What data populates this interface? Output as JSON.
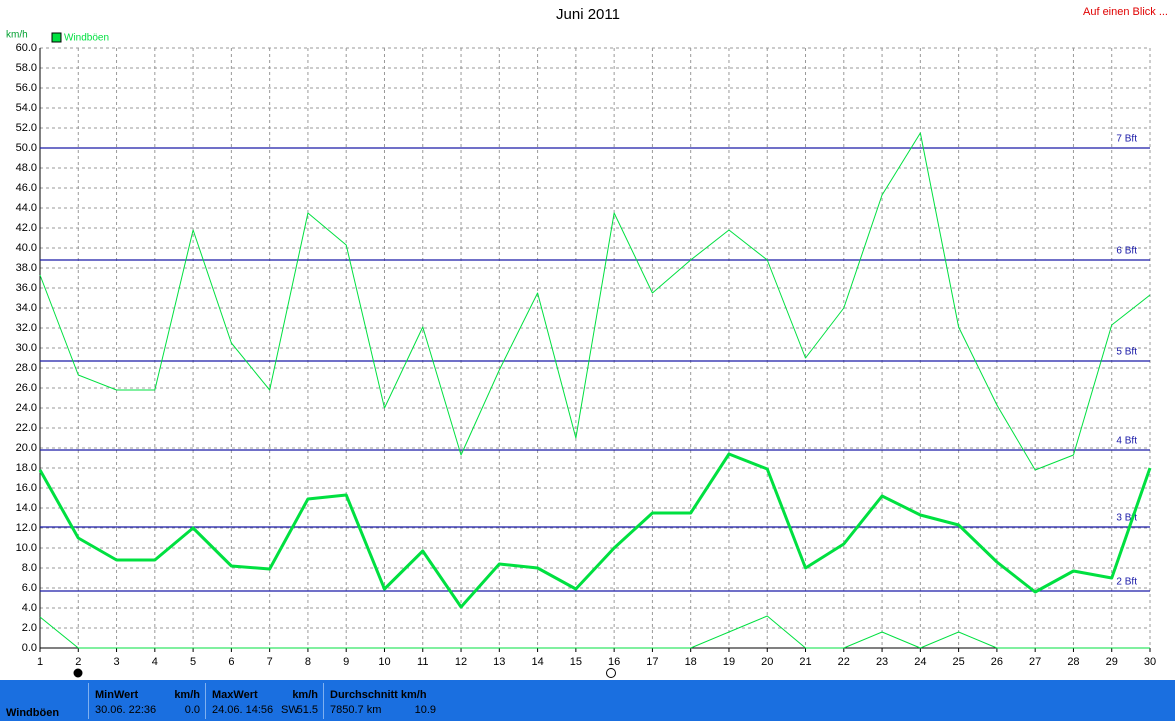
{
  "chart_data": {
    "type": "line",
    "title": "Juni 2011",
    "y_label": "km/h",
    "legend_label": "Windböen",
    "legend_color": "#00e040",
    "x": [
      1,
      2,
      3,
      4,
      5,
      6,
      7,
      8,
      9,
      10,
      11,
      12,
      13,
      14,
      15,
      16,
      17,
      18,
      19,
      20,
      21,
      22,
      23,
      24,
      25,
      26,
      27,
      28,
      29,
      30
    ],
    "xlim": [
      1,
      30
    ],
    "xticks": [
      1,
      2,
      3,
      4,
      5,
      6,
      7,
      8,
      9,
      10,
      11,
      12,
      13,
      14,
      15,
      16,
      17,
      18,
      19,
      20,
      21,
      22,
      23,
      24,
      25,
      26,
      27,
      28,
      29,
      30
    ],
    "ylim": [
      0,
      60
    ],
    "yticks": [
      {
        "value": 0,
        "label": "0.0"
      },
      {
        "value": 2,
        "label": "2.0"
      },
      {
        "value": 4,
        "label": "4.0"
      },
      {
        "value": 6,
        "label": "6.0"
      },
      {
        "value": 8,
        "label": "8.0"
      },
      {
        "value": 10,
        "label": "10.0"
      },
      {
        "value": 12,
        "label": "12.0"
      },
      {
        "value": 14,
        "label": "14.0"
      },
      {
        "value": 16,
        "label": "16.0"
      },
      {
        "value": 18,
        "label": "18.0"
      },
      {
        "value": 20,
        "label": "20.0"
      },
      {
        "value": 22,
        "label": "22.0"
      },
      {
        "value": 24,
        "label": "24.0"
      },
      {
        "value": 26,
        "label": "26.0"
      },
      {
        "value": 28,
        "label": "28.0"
      },
      {
        "value": 30,
        "label": "30.0"
      },
      {
        "value": 32,
        "label": "32.0"
      },
      {
        "value": 34,
        "label": "34.0"
      },
      {
        "value": 36,
        "label": "36.0"
      },
      {
        "value": 38,
        "label": "38.0"
      },
      {
        "value": 40,
        "label": "40.0"
      },
      {
        "value": 42,
        "label": "42.0"
      },
      {
        "value": 44,
        "label": "44.0"
      },
      {
        "value": 46,
        "label": "46.0"
      },
      {
        "value": 48,
        "label": "48.0"
      },
      {
        "value": 50,
        "label": "50.0"
      },
      {
        "value": 52,
        "label": "52.0"
      },
      {
        "value": 54,
        "label": "54.0"
      },
      {
        "value": 56,
        "label": "56.0"
      },
      {
        "value": 58,
        "label": "58.0"
      },
      {
        "value": 60,
        "label": "60.0"
      }
    ],
    "grid": true,
    "series": [
      {
        "color": "#00e040",
        "line_width": 1,
        "values": [
          37.3,
          27.3,
          25.8,
          25.8,
          41.8,
          30.5,
          25.8,
          43.5,
          40.3,
          24.0,
          32.1,
          19.3,
          27.8,
          35.5,
          21.0,
          43.5,
          35.5,
          38.8,
          41.8,
          38.8,
          29.0,
          34.0,
          45.3,
          51.5,
          32.1,
          24.3,
          17.8,
          19.3,
          32.3,
          35.3
        ]
      },
      {
        "color": "#00e040",
        "line_width": 3,
        "values": [
          17.8,
          11.0,
          8.8,
          8.8,
          12.0,
          8.2,
          7.9,
          14.9,
          15.3,
          5.9,
          9.7,
          4.1,
          8.4,
          8.0,
          5.9,
          10.0,
          13.5,
          13.5,
          19.4,
          17.9,
          8.0,
          10.4,
          15.2,
          13.3,
          12.3,
          8.6,
          5.6,
          7.7,
          7.0,
          18.0
        ]
      },
      {
        "color": "#00e040",
        "line_width": 1,
        "values": [
          3.1,
          0,
          0,
          0,
          0,
          0,
          0,
          0,
          0,
          0,
          0,
          0,
          0,
          0,
          0,
          0,
          0,
          0,
          1.6,
          3.2,
          0,
          0,
          1.6,
          0,
          1.6,
          0,
          0,
          0,
          0,
          0
        ]
      }
    ],
    "reference_lines": [
      {
        "label": "7 Bft",
        "value": 50.0,
        "color": "#1a1aa8"
      },
      {
        "label": "6 Bft",
        "value": 38.8,
        "color": "#1a1aa8"
      },
      {
        "label": "5 Bft",
        "value": 28.7,
        "color": "#1a1aa8"
      },
      {
        "label": "4 Bft",
        "value": 19.8,
        "color": "#1a1aa8"
      },
      {
        "label": "3 Bft",
        "value": 12.1,
        "color": "#1a1aa8"
      },
      {
        "label": "2 Bft",
        "value": 5.7,
        "color": "#1a1aa8"
      }
    ]
  },
  "header_link": "Auf einen Blick ...",
  "summary": {
    "name": "Windböen",
    "min": {
      "label": "MinWert",
      "unit": "km/h",
      "date": "30.06. 22:36",
      "value": "0.0"
    },
    "max": {
      "label": "MaxWert",
      "unit": "km/h",
      "date": "24.06. 14:56",
      "direction": "SW",
      "value": "51.5"
    },
    "avg": {
      "label": "Durchschnitt km/h",
      "distance": "7850.7 km",
      "value": "10.9"
    }
  }
}
